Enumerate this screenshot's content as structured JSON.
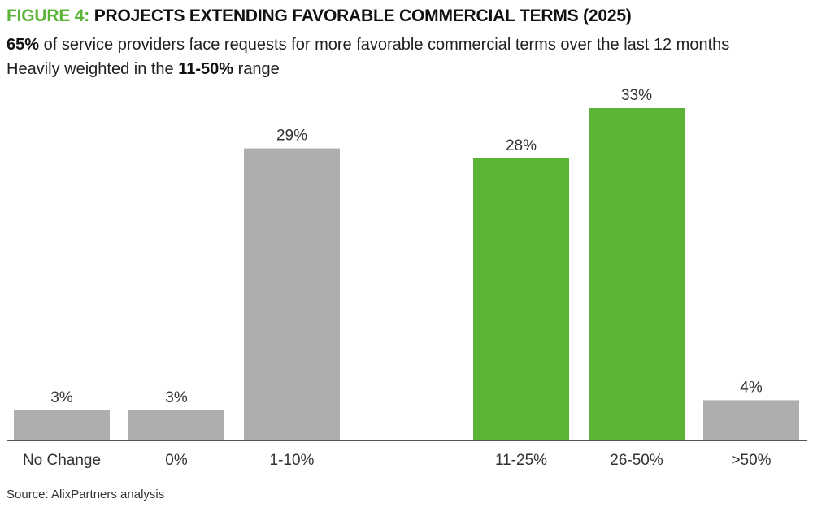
{
  "header": {
    "figure_label": "FIGURE 4:",
    "title": "PROJECTS EXTENDING FAVORABLE COMMERCIAL TERMS (2025)",
    "subtitle1_bold": "65%",
    "subtitle1_rest": " of service providers face requests for more favorable commercial terms over the last 12 months",
    "subtitle2_pre": "Heavily weighted in the ",
    "subtitle2_bold": "11-50%",
    "subtitle2_post": " range"
  },
  "colors": {
    "brand_green": "#5bb436",
    "gray": "#adaeb0",
    "axis": "#555555"
  },
  "chart_data": {
    "type": "bar",
    "categories": [
      "No Change",
      "0%",
      "1-10%",
      "11-25%",
      "26-50%",
      ">50%"
    ],
    "values": [
      3,
      3,
      29,
      28,
      33,
      4
    ],
    "data_labels": [
      "3%",
      "3%",
      "29%",
      "28%",
      "33%",
      "4%"
    ],
    "highlight": [
      false,
      false,
      false,
      true,
      true,
      false
    ],
    "title": "",
    "xlabel": "",
    "ylabel": "",
    "ylim": [
      0,
      33
    ],
    "grid": false,
    "legend": "none"
  },
  "footer": {
    "source": "Source: AlixPartners analysis"
  }
}
